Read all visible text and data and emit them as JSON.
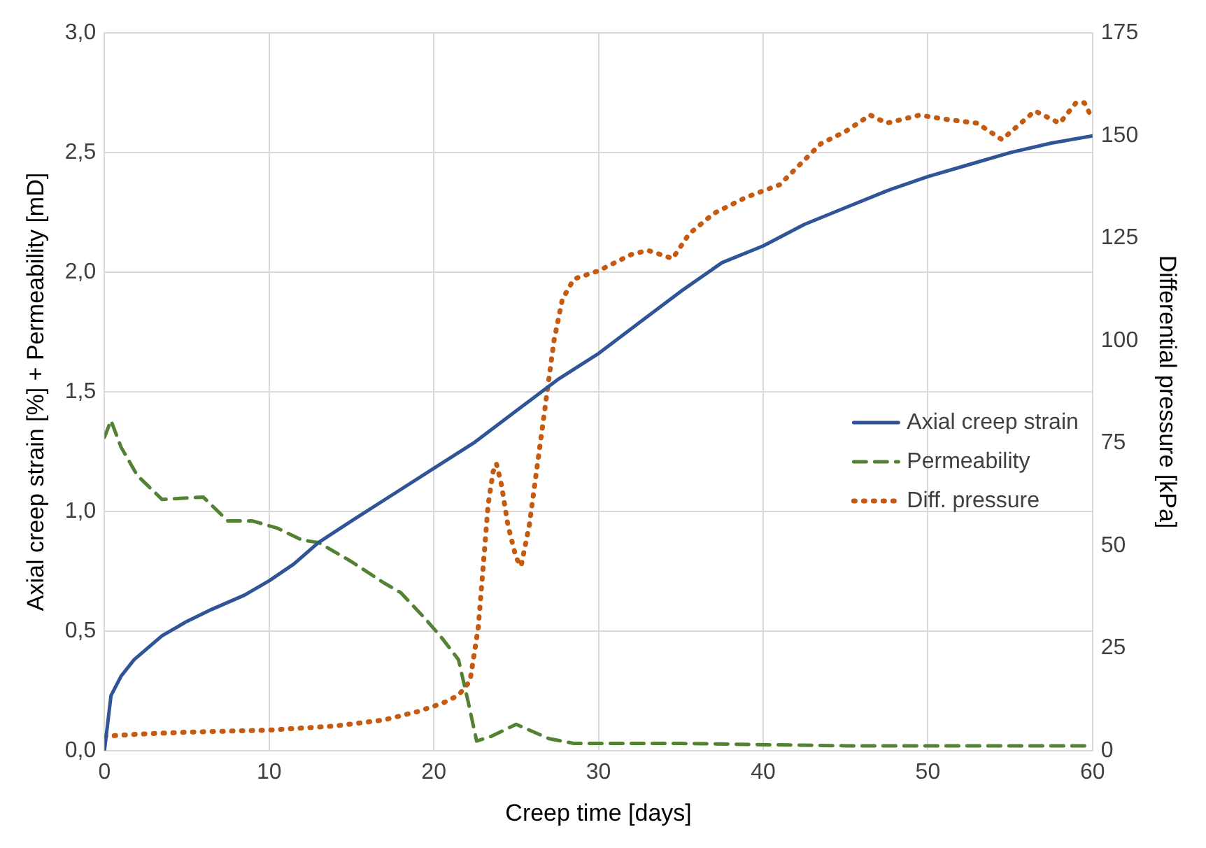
{
  "chart_data": {
    "type": "line",
    "xlabel": "Creep time [days]",
    "ylabel": "Axial creep strain [%] + Permeability [mD]",
    "y2label": "Differential pressure [kPa]",
    "xlim": [
      0,
      60
    ],
    "xticks": [
      0,
      10,
      20,
      30,
      40,
      50,
      60
    ],
    "ylim": [
      0,
      3
    ],
    "yticks": [
      {
        "value": 0,
        "label": "0,0"
      },
      {
        "value": 0.5,
        "label": "0,5"
      },
      {
        "value": 1,
        "label": "1,0"
      },
      {
        "value": 1.5,
        "label": "1,5"
      },
      {
        "value": 2,
        "label": "2,0"
      },
      {
        "value": 2.5,
        "label": "2,5"
      },
      {
        "value": 3,
        "label": "3,0"
      }
    ],
    "y2lim": [
      0,
      175
    ],
    "y2ticks": [
      0,
      25,
      50,
      75,
      100,
      125,
      150,
      175
    ],
    "grid": true,
    "legend": "right",
    "marker": "none",
    "series": [
      {
        "name": "Axial creep strain",
        "color": "#2f5597",
        "line_style": "solid",
        "x": [
          0,
          0.4,
          1,
          1.8,
          3.5,
          5,
          6.5,
          8.5,
          10,
          11.5,
          13,
          15,
          17.5,
          20,
          22.5,
          25,
          27.5,
          30,
          32.5,
          35,
          37.5,
          40,
          42.5,
          45,
          47.5,
          50,
          52.5,
          55,
          57.5,
          60
        ],
        "values": [
          0,
          0.23,
          0.31,
          0.38,
          0.48,
          0.54,
          0.59,
          0.65,
          0.71,
          0.78,
          0.87,
          0.96,
          1.07,
          1.18,
          1.29,
          1.42,
          1.55,
          1.66,
          1.79,
          1.92,
          2.04,
          2.11,
          2.2,
          2.27,
          2.34,
          2.4,
          2.45,
          2.5,
          2.54,
          2.57
        ]
      },
      {
        "name": "Permeability",
        "color": "#548235",
        "line_style": "dashed",
        "x": [
          0,
          0.4,
          1,
          2,
          3.5,
          6,
          7.5,
          9,
          10.5,
          12,
          13,
          15,
          17,
          18,
          19.5,
          20.5,
          21.5,
          22.1,
          22.6,
          23.5,
          25,
          26,
          27,
          28.5,
          35,
          45,
          53,
          60
        ],
        "values": [
          1.31,
          1.38,
          1.27,
          1.15,
          1.05,
          1.06,
          0.96,
          0.96,
          0.93,
          0.88,
          0.87,
          0.79,
          0.7,
          0.66,
          0.55,
          0.47,
          0.38,
          0.2,
          0.04,
          0.06,
          0.11,
          0.08,
          0.05,
          0.03,
          0.03,
          0.02,
          0.02,
          0.02
        ]
      },
      {
        "name": "Diff. pressure",
        "color": "#c55a11",
        "line_style": "dotted",
        "axis": "y2",
        "x": [
          0,
          2,
          5,
          10,
          14,
          17,
          19,
          20.5,
          21.5,
          22.2,
          22.7,
          23,
          23.3,
          23.6,
          23.8,
          24.1,
          24.5,
          25,
          25.3,
          25.8,
          26.3,
          26.8,
          27.3,
          27.8,
          28.5,
          30,
          32,
          33,
          34.5,
          35.5,
          37,
          39,
          41,
          42,
          43.5,
          45,
          46.5,
          47.5,
          49.5,
          51,
          53,
          54.5,
          56.5,
          58,
          59,
          59.5,
          60
        ],
        "values": [
          3.5,
          4,
          4.5,
          5,
          6,
          7.5,
          9.5,
          11.5,
          13.5,
          17,
          30,
          45,
          60,
          68,
          70,
          65,
          55,
          47,
          45,
          55,
          70,
          85,
          100,
          110,
          115,
          117,
          121,
          122,
          120,
          126,
          131,
          135,
          138,
          142,
          148,
          151,
          155,
          153,
          155,
          154,
          153,
          149,
          156,
          153,
          158,
          158,
          154
        ]
      }
    ]
  }
}
